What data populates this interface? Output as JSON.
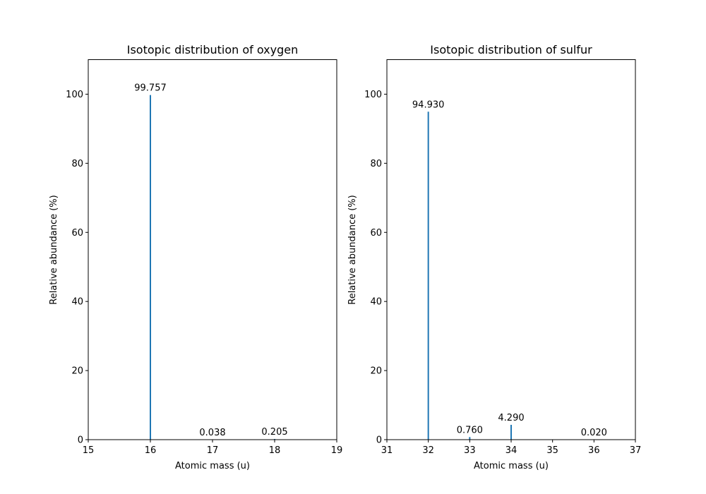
{
  "chart_data": [
    {
      "type": "bar",
      "title": "Isotopic distribution of oxygen",
      "xlabel": "Atomic mass (u)",
      "ylabel": "Relative abundance (%)",
      "x": [
        16,
        17,
        18
      ],
      "values": [
        99.757,
        0.038,
        0.205
      ],
      "data_labels": [
        "99.757",
        "0.038",
        "0.205"
      ],
      "xlim": [
        15,
        19
      ],
      "ylim": [
        0,
        110
      ],
      "xticks": [
        15,
        16,
        17,
        18,
        19
      ],
      "yticks": [
        0,
        20,
        40,
        60,
        80,
        100
      ],
      "color": "#1f77b4",
      "grid": false
    },
    {
      "type": "bar",
      "title": "Isotopic distribution of sulfur",
      "xlabel": "Atomic mass (u)",
      "ylabel": "Relative abundance (%)",
      "x": [
        32,
        33,
        34,
        36
      ],
      "values": [
        94.93,
        0.76,
        4.29,
        0.02
      ],
      "data_labels": [
        "94.930",
        "0.760",
        "4.290",
        "0.020"
      ],
      "xlim": [
        31,
        37
      ],
      "ylim": [
        0,
        110
      ],
      "xticks": [
        31,
        32,
        33,
        34,
        35,
        36,
        37
      ],
      "yticks": [
        0,
        20,
        40,
        60,
        80,
        100
      ],
      "color": "#1f77b4",
      "grid": false
    }
  ]
}
